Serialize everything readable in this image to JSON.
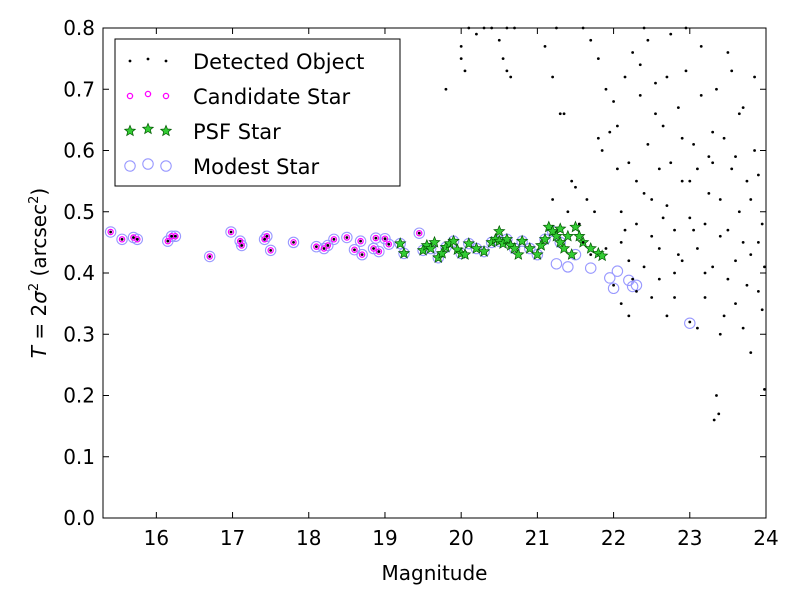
{
  "chart_data": {
    "type": "scatter",
    "xlabel": "Magnitude",
    "ylabel": "T = 2σ² (arcsec²)",
    "xlim": [
      15.3,
      24
    ],
    "ylim": [
      0.0,
      0.8
    ],
    "x_ticks": [
      16,
      17,
      18,
      19,
      20,
      21,
      22,
      23,
      24
    ],
    "x_tick_labels": [
      "16",
      "17",
      "18",
      "19",
      "20",
      "21",
      "22",
      "23",
      "24"
    ],
    "y_ticks": [
      0.0,
      0.1,
      0.2,
      0.3,
      0.4,
      0.5,
      0.6,
      0.7,
      0.8
    ],
    "y_tick_labels": [
      "0.0",
      "0.1",
      "0.2",
      "0.3",
      "0.4",
      "0.5",
      "0.6",
      "0.7",
      "0.8"
    ],
    "grid": false,
    "legend_position": "top-left",
    "series": [
      {
        "name": "Detected Object",
        "marker": "dot",
        "color": "#000000",
        "points": [
          [
            15.4,
            0.467
          ],
          [
            15.55,
            0.455
          ],
          [
            15.7,
            0.458
          ],
          [
            15.75,
            0.455
          ],
          [
            16.15,
            0.452
          ],
          [
            16.2,
            0.46
          ],
          [
            16.25,
            0.46
          ],
          [
            16.7,
            0.427
          ],
          [
            16.98,
            0.467
          ],
          [
            17.1,
            0.452
          ],
          [
            17.12,
            0.445
          ],
          [
            17.42,
            0.455
          ],
          [
            17.45,
            0.46
          ],
          [
            17.5,
            0.437
          ],
          [
            17.8,
            0.45
          ],
          [
            18.1,
            0.443
          ],
          [
            18.2,
            0.44
          ],
          [
            18.25,
            0.445
          ],
          [
            18.33,
            0.455
          ],
          [
            18.5,
            0.458
          ],
          [
            18.6,
            0.438
          ],
          [
            18.68,
            0.452
          ],
          [
            18.7,
            0.43
          ],
          [
            18.85,
            0.44
          ],
          [
            18.88,
            0.457
          ],
          [
            18.92,
            0.435
          ],
          [
            19.0,
            0.456
          ],
          [
            19.05,
            0.447
          ],
          [
            19.45,
            0.465
          ],
          [
            19.8,
            0.7
          ],
          [
            20.1,
            0.8
          ],
          [
            20.3,
            0.8
          ],
          [
            20.4,
            0.8
          ],
          [
            20.5,
            0.78
          ],
          [
            20.55,
            0.75
          ],
          [
            20.6,
            0.73
          ],
          [
            20.65,
            0.72
          ],
          [
            20.0,
            0.75
          ],
          [
            20.05,
            0.73
          ],
          [
            20.0,
            0.77
          ],
          [
            20.2,
            0.79
          ],
          [
            20.6,
            0.8
          ],
          [
            20.7,
            0.8
          ],
          [
            21.1,
            0.77
          ],
          [
            21.2,
            0.72
          ],
          [
            21.3,
            0.66
          ],
          [
            21.6,
            0.8
          ],
          [
            21.7,
            0.78
          ],
          [
            21.8,
            0.75
          ],
          [
            21.9,
            0.7
          ],
          [
            21.25,
            0.8
          ],
          [
            21.35,
            0.66
          ],
          [
            21.45,
            0.55
          ],
          [
            21.55,
            0.48
          ],
          [
            21.65,
            0.52
          ],
          [
            21.75,
            0.5
          ],
          [
            21.85,
            0.6
          ],
          [
            21.95,
            0.63
          ],
          [
            21.2,
            0.52
          ],
          [
            21.4,
            0.5
          ],
          [
            21.5,
            0.54
          ],
          [
            21.6,
            0.45
          ],
          [
            21.7,
            0.43
          ],
          [
            21.8,
            0.62
          ],
          [
            21.9,
            0.44
          ],
          [
            22.0,
            0.68
          ],
          [
            22.05,
            0.57
          ],
          [
            22.1,
            0.5
          ],
          [
            22.15,
            0.47
          ],
          [
            22.2,
            0.42
          ],
          [
            22.25,
            0.39
          ],
          [
            22.3,
            0.55
          ],
          [
            22.35,
            0.74
          ],
          [
            22.4,
            0.8
          ],
          [
            22.45,
            0.61
          ],
          [
            22.5,
            0.52
          ],
          [
            22.55,
            0.66
          ],
          [
            22.6,
            0.44
          ],
          [
            22.65,
            0.49
          ],
          [
            22.7,
            0.72
          ],
          [
            22.75,
            0.58
          ],
          [
            22.8,
            0.36
          ],
          [
            22.85,
            0.43
          ],
          [
            22.9,
            0.62
          ],
          [
            22.95,
            0.8
          ],
          [
            23.0,
            0.55
          ],
          [
            23.05,
            0.47
          ],
          [
            23.1,
            0.31
          ],
          [
            23.15,
            0.69
          ],
          [
            23.2,
            0.4
          ],
          [
            23.25,
            0.53
          ],
          [
            23.3,
            0.63
          ],
          [
            23.35,
            0.2
          ],
          [
            23.4,
            0.46
          ],
          [
            23.45,
            0.33
          ],
          [
            23.5,
            0.76
          ],
          [
            23.55,
            0.57
          ],
          [
            23.6,
            0.42
          ],
          [
            23.65,
            0.5
          ],
          [
            23.7,
            0.67
          ],
          [
            23.75,
            0.38
          ],
          [
            23.8,
            0.27
          ],
          [
            23.85,
            0.6
          ],
          [
            23.9,
            0.45
          ],
          [
            23.95,
            0.34
          ],
          [
            23.98,
            0.21
          ],
          [
            23.32,
            0.16
          ],
          [
            23.38,
            0.17
          ],
          [
            22.0,
            0.38
          ],
          [
            22.1,
            0.35
          ],
          [
            22.2,
            0.33
          ],
          [
            22.3,
            0.37
          ],
          [
            22.4,
            0.41
          ],
          [
            22.5,
            0.36
          ],
          [
            22.6,
            0.39
          ],
          [
            22.7,
            0.33
          ],
          [
            22.8,
            0.4
          ],
          [
            22.9,
            0.42
          ],
          [
            23.0,
            0.32
          ],
          [
            23.1,
            0.44
          ],
          [
            23.2,
            0.36
          ],
          [
            23.3,
            0.41
          ],
          [
            23.4,
            0.3
          ],
          [
            23.5,
            0.39
          ],
          [
            23.6,
            0.35
          ],
          [
            23.7,
            0.31
          ],
          [
            23.8,
            0.43
          ],
          [
            23.9,
            0.37
          ],
          [
            22.05,
            0.64
          ],
          [
            22.15,
            0.72
          ],
          [
            22.25,
            0.76
          ],
          [
            22.35,
            0.69
          ],
          [
            22.45,
            0.78
          ],
          [
            22.55,
            0.71
          ],
          [
            22.65,
            0.64
          ],
          [
            22.75,
            0.79
          ],
          [
            22.85,
            0.67
          ],
          [
            22.95,
            0.73
          ],
          [
            23.05,
            0.61
          ],
          [
            23.15,
            0.77
          ],
          [
            23.25,
            0.59
          ],
          [
            23.35,
            0.7
          ],
          [
            23.45,
            0.62
          ],
          [
            23.55,
            0.73
          ],
          [
            23.65,
            0.66
          ],
          [
            23.75,
            0.55
          ],
          [
            23.85,
            0.72
          ],
          [
            23.95,
            0.48
          ],
          [
            22.1,
            0.45
          ],
          [
            22.2,
            0.58
          ],
          [
            22.3,
            0.48
          ],
          [
            22.4,
            0.53
          ],
          [
            22.5,
            0.46
          ],
          [
            22.6,
            0.57
          ],
          [
            22.7,
            0.51
          ],
          [
            22.8,
            0.47
          ],
          [
            22.9,
            0.55
          ],
          [
            23.0,
            0.49
          ],
          [
            23.1,
            0.57
          ],
          [
            23.2,
            0.48
          ],
          [
            23.3,
            0.58
          ],
          [
            23.4,
            0.52
          ],
          [
            23.5,
            0.47
          ],
          [
            23.6,
            0.59
          ],
          [
            23.7,
            0.45
          ],
          [
            23.8,
            0.52
          ],
          [
            23.9,
            0.56
          ],
          [
            23.98,
            0.41
          ]
        ]
      },
      {
        "name": "Candidate Star",
        "marker": "small-magenta-circle",
        "color": "#ff00ff",
        "points": [
          [
            15.4,
            0.467
          ],
          [
            15.55,
            0.455
          ],
          [
            15.7,
            0.458
          ],
          [
            15.75,
            0.455
          ],
          [
            16.15,
            0.452
          ],
          [
            16.2,
            0.46
          ],
          [
            16.25,
            0.46
          ],
          [
            16.7,
            0.427
          ],
          [
            16.98,
            0.467
          ],
          [
            17.1,
            0.452
          ],
          [
            17.12,
            0.445
          ],
          [
            17.42,
            0.455
          ],
          [
            17.45,
            0.46
          ],
          [
            17.5,
            0.437
          ],
          [
            17.8,
            0.45
          ],
          [
            18.1,
            0.443
          ],
          [
            18.2,
            0.44
          ],
          [
            18.25,
            0.445
          ],
          [
            18.33,
            0.455
          ],
          [
            18.5,
            0.458
          ],
          [
            18.6,
            0.438
          ],
          [
            18.68,
            0.452
          ],
          [
            18.7,
            0.43
          ],
          [
            18.85,
            0.44
          ],
          [
            18.88,
            0.457
          ],
          [
            18.92,
            0.435
          ],
          [
            19.0,
            0.456
          ],
          [
            19.05,
            0.447
          ],
          [
            19.45,
            0.465
          ]
        ]
      },
      {
        "name": "PSF Star",
        "marker": "star",
        "color": "#008000",
        "points": [
          [
            19.2,
            0.448
          ],
          [
            19.25,
            0.432
          ],
          [
            19.5,
            0.437
          ],
          [
            19.55,
            0.445
          ],
          [
            19.6,
            0.44
          ],
          [
            19.65,
            0.45
          ],
          [
            19.7,
            0.425
          ],
          [
            19.75,
            0.432
          ],
          [
            19.8,
            0.442
          ],
          [
            19.85,
            0.448
          ],
          [
            19.9,
            0.452
          ],
          [
            19.95,
            0.438
          ],
          [
            20.0,
            0.432
          ],
          [
            20.05,
            0.43
          ],
          [
            20.1,
            0.448
          ],
          [
            20.2,
            0.44
          ],
          [
            20.3,
            0.435
          ],
          [
            20.4,
            0.45
          ],
          [
            20.45,
            0.455
          ],
          [
            20.5,
            0.452
          ],
          [
            20.55,
            0.448
          ],
          [
            20.6,
            0.455
          ],
          [
            20.65,
            0.445
          ],
          [
            20.7,
            0.44
          ],
          [
            20.75,
            0.43
          ],
          [
            20.8,
            0.452
          ],
          [
            20.9,
            0.44
          ],
          [
            21.0,
            0.43
          ],
          [
            21.05,
            0.445
          ],
          [
            21.1,
            0.455
          ],
          [
            21.15,
            0.475
          ],
          [
            21.2,
            0.468
          ],
          [
            21.25,
            0.46
          ],
          [
            21.3,
            0.45
          ],
          [
            21.35,
            0.44
          ],
          [
            21.4,
            0.46
          ],
          [
            21.45,
            0.43
          ],
          [
            21.5,
            0.475
          ],
          [
            21.55,
            0.46
          ],
          [
            21.6,
            0.45
          ],
          [
            21.7,
            0.44
          ],
          [
            21.8,
            0.432
          ],
          [
            21.85,
            0.428
          ],
          [
            20.5,
            0.468
          ],
          [
            21.3,
            0.472
          ]
        ]
      },
      {
        "name": "Modest Star",
        "marker": "open-circle",
        "color": "#9999ff",
        "points": [
          [
            15.4,
            0.467
          ],
          [
            15.55,
            0.455
          ],
          [
            15.7,
            0.458
          ],
          [
            15.75,
            0.455
          ],
          [
            16.15,
            0.452
          ],
          [
            16.2,
            0.46
          ],
          [
            16.25,
            0.46
          ],
          [
            16.7,
            0.427
          ],
          [
            16.98,
            0.467
          ],
          [
            17.1,
            0.452
          ],
          [
            17.12,
            0.445
          ],
          [
            17.42,
            0.455
          ],
          [
            17.45,
            0.46
          ],
          [
            17.5,
            0.437
          ],
          [
            17.8,
            0.45
          ],
          [
            18.1,
            0.443
          ],
          [
            18.2,
            0.44
          ],
          [
            18.25,
            0.445
          ],
          [
            18.33,
            0.455
          ],
          [
            18.5,
            0.458
          ],
          [
            18.6,
            0.438
          ],
          [
            18.68,
            0.452
          ],
          [
            18.7,
            0.43
          ],
          [
            18.85,
            0.44
          ],
          [
            18.88,
            0.457
          ],
          [
            18.92,
            0.435
          ],
          [
            19.0,
            0.456
          ],
          [
            19.05,
            0.447
          ],
          [
            19.45,
            0.465
          ],
          [
            19.2,
            0.448
          ],
          [
            19.25,
            0.432
          ],
          [
            19.5,
            0.437
          ],
          [
            19.6,
            0.44
          ],
          [
            19.7,
            0.425
          ],
          [
            19.8,
            0.442
          ],
          [
            19.9,
            0.452
          ],
          [
            20.0,
            0.432
          ],
          [
            20.1,
            0.448
          ],
          [
            20.2,
            0.44
          ],
          [
            20.3,
            0.435
          ],
          [
            20.4,
            0.45
          ],
          [
            20.5,
            0.452
          ],
          [
            20.6,
            0.455
          ],
          [
            20.7,
            0.44
          ],
          [
            20.8,
            0.452
          ],
          [
            20.9,
            0.44
          ],
          [
            21.0,
            0.43
          ],
          [
            21.1,
            0.455
          ],
          [
            21.2,
            0.468
          ],
          [
            21.25,
            0.415
          ],
          [
            21.3,
            0.45
          ],
          [
            21.4,
            0.41
          ],
          [
            21.5,
            0.43
          ],
          [
            21.7,
            0.408
          ],
          [
            21.95,
            0.392
          ],
          [
            22.0,
            0.375
          ],
          [
            22.05,
            0.403
          ],
          [
            22.2,
            0.388
          ],
          [
            22.25,
            0.378
          ],
          [
            22.3,
            0.38
          ],
          [
            23.0,
            0.318
          ]
        ]
      }
    ]
  }
}
